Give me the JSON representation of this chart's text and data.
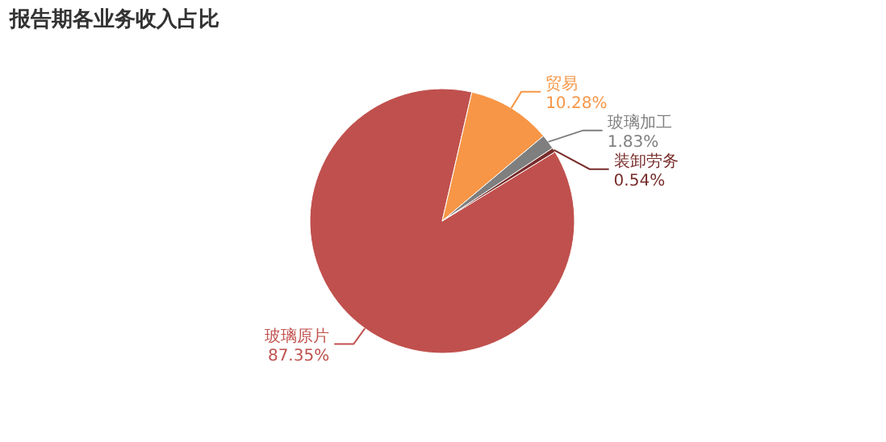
{
  "chart_data": {
    "type": "pie",
    "title": "报告期各业务收入占比",
    "categories": [
      "玻璃原片",
      "贸易",
      "玻璃加工",
      "装卸劳务"
    ],
    "values": [
      87.35,
      10.28,
      1.83,
      0.54
    ],
    "colors": [
      "#c0504d",
      "#f79646",
      "#7f7f7f",
      "#772c2a"
    ],
    "value_labels": [
      "87.35%",
      "10.28%",
      "1.83%",
      "0.54%"
    ]
  }
}
